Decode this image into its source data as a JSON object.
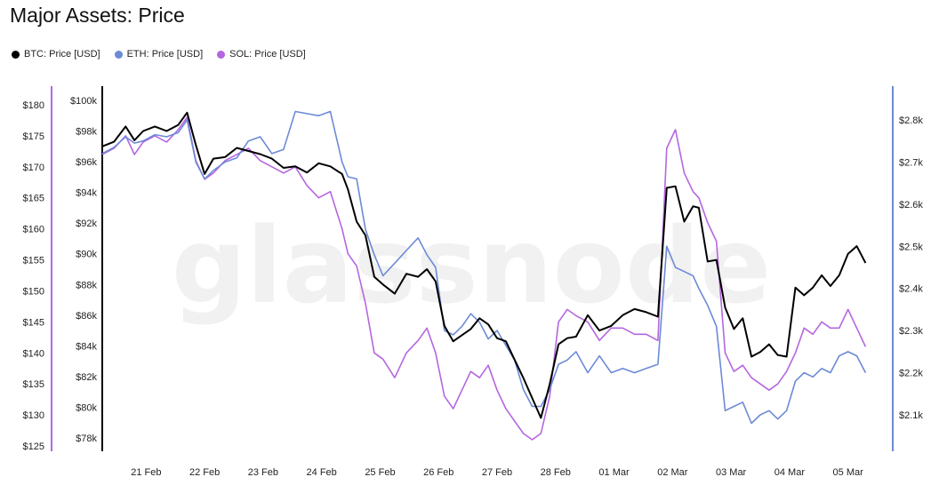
{
  "chart_data": {
    "type": "line",
    "title": "Major Assets: Price",
    "watermark": "glassnode",
    "colors": {
      "btc": "#000000",
      "eth": "#6c8ad6",
      "sol": "#b566e0"
    },
    "legend": [
      {
        "name": "BTC: Price [USD]",
        "color": "#000000"
      },
      {
        "name": "ETH: Price [USD]",
        "color": "#6c8ad6"
      },
      {
        "name": "SOL: Price [USD]",
        "color": "#b566e0"
      }
    ],
    "x_ticks": [
      "21 Feb",
      "22 Feb",
      "23 Feb",
      "24 Feb",
      "25 Feb",
      "26 Feb",
      "27 Feb",
      "28 Feb",
      "01 Mar",
      "02 Mar",
      "03 Mar",
      "04 Mar",
      "05 Mar"
    ],
    "btc_axis": {
      "ticks": [
        "$100k",
        "$98k",
        "$96k",
        "$94k",
        "$92k",
        "$90k",
        "$88k",
        "$86k",
        "$84k",
        "$82k",
        "$80k",
        "$78k"
      ],
      "range": [
        78000,
        100000
      ]
    },
    "sol_axis": {
      "ticks": [
        "$180",
        "$175",
        "$170",
        "$165",
        "$160",
        "$155",
        "$150",
        "$145",
        "$140",
        "$135",
        "$130",
        "$125"
      ],
      "range": [
        125,
        180
      ]
    },
    "eth_axis": {
      "ticks": [
        "$2.8k",
        "$2.7k",
        "$2.6k",
        "$2.5k",
        "$2.4k",
        "$2.3k",
        "$2.2k",
        "$2.1k"
      ],
      "range": [
        2100,
        2800
      ]
    },
    "x_range": [
      0,
      13.5
    ],
    "series": [
      {
        "name": "BTC: Price [USD]",
        "axis": "btc",
        "x": [
          0,
          0.2,
          0.4,
          0.55,
          0.7,
          0.9,
          1.1,
          1.3,
          1.45,
          1.6,
          1.75,
          1.9,
          2.1,
          2.3,
          2.5,
          2.7,
          2.9,
          3.1,
          3.3,
          3.5,
          3.7,
          3.9,
          4.1,
          4.2,
          4.35,
          4.5,
          4.65,
          4.8,
          5,
          5.2,
          5.4,
          5.55,
          5.7,
          5.85,
          6,
          6.15,
          6.3,
          6.45,
          6.6,
          6.75,
          6.9,
          7.05,
          7.2,
          7.35,
          7.5,
          7.65,
          7.8,
          7.95,
          8.1,
          8.3,
          8.5,
          8.7,
          8.9,
          9.1,
          9.3,
          9.5,
          9.65,
          9.8,
          9.95,
          10.1,
          10.2,
          10.35,
          10.5,
          10.65,
          10.8,
          10.95,
          11.1,
          11.25,
          11.4,
          11.55,
          11.7,
          11.85,
          12,
          12.15,
          12.3,
          12.45,
          12.6,
          12.75,
          12.9,
          13.05
        ],
        "y": [
          97000,
          97300,
          98300,
          97400,
          98000,
          98300,
          98000,
          98400,
          99200,
          97100,
          95200,
          96200,
          96300,
          96900,
          96700,
          96500,
          96200,
          95600,
          95700,
          95300,
          95900,
          95700,
          95200,
          94200,
          92100,
          91200,
          88500,
          88000,
          87400,
          88700,
          88500,
          89000,
          88200,
          85300,
          84300,
          84700,
          85100,
          85800,
          85400,
          84500,
          84300,
          83100,
          81900,
          80600,
          79300,
          81500,
          84100,
          84500,
          84600,
          86000,
          85000,
          85300,
          86000,
          86400,
          86200,
          85900,
          94300,
          94400,
          92100,
          93100,
          93000,
          89500,
          89600,
          86500,
          85100,
          85800,
          83300,
          83600,
          84100,
          83400,
          83300,
          87800,
          87300,
          87800,
          88600,
          87900,
          88600,
          90000,
          90500,
          89400
        ]
      },
      {
        "name": "ETH: Price [USD]",
        "axis": "eth",
        "x": [
          0,
          0.2,
          0.4,
          0.55,
          0.7,
          0.9,
          1.1,
          1.3,
          1.45,
          1.6,
          1.75,
          1.9,
          2.1,
          2.3,
          2.5,
          2.7,
          2.9,
          3.1,
          3.3,
          3.5,
          3.7,
          3.9,
          4.1,
          4.2,
          4.35,
          4.5,
          4.65,
          4.8,
          5,
          5.2,
          5.4,
          5.55,
          5.7,
          5.85,
          6,
          6.15,
          6.3,
          6.45,
          6.6,
          6.75,
          6.9,
          7.05,
          7.2,
          7.35,
          7.5,
          7.65,
          7.8,
          7.95,
          8.1,
          8.3,
          8.5,
          8.7,
          8.9,
          9.1,
          9.3,
          9.5,
          9.65,
          9.8,
          9.95,
          10.1,
          10.2,
          10.35,
          10.5,
          10.65,
          10.8,
          10.95,
          11.1,
          11.25,
          11.4,
          11.55,
          11.7,
          11.85,
          12,
          12.15,
          12.3,
          12.45,
          12.6,
          12.75,
          12.9,
          13.05
        ],
        "y": [
          2720,
          2735,
          2760,
          2745,
          2750,
          2765,
          2760,
          2770,
          2800,
          2700,
          2660,
          2680,
          2700,
          2710,
          2750,
          2760,
          2720,
          2730,
          2820,
          2815,
          2810,
          2820,
          2700,
          2665,
          2660,
          2540,
          2480,
          2430,
          2460,
          2490,
          2520,
          2480,
          2450,
          2300,
          2290,
          2310,
          2340,
          2320,
          2280,
          2300,
          2265,
          2230,
          2160,
          2120,
          2120,
          2160,
          2220,
          2230,
          2250,
          2200,
          2240,
          2200,
          2210,
          2200,
          2210,
          2220,
          2500,
          2450,
          2440,
          2430,
          2400,
          2360,
          2310,
          2110,
          2120,
          2130,
          2080,
          2100,
          2110,
          2090,
          2110,
          2180,
          2200,
          2190,
          2210,
          2200,
          2240,
          2250,
          2240,
          2200
        ]
      },
      {
        "name": "SOL: Price [USD]",
        "axis": "sol",
        "x": [
          0,
          0.2,
          0.4,
          0.55,
          0.7,
          0.9,
          1.1,
          1.3,
          1.45,
          1.6,
          1.75,
          1.9,
          2.1,
          2.3,
          2.5,
          2.7,
          2.9,
          3.1,
          3.3,
          3.5,
          3.7,
          3.9,
          4.1,
          4.2,
          4.35,
          4.5,
          4.65,
          4.8,
          5,
          5.2,
          5.4,
          5.55,
          5.7,
          5.85,
          6,
          6.15,
          6.3,
          6.45,
          6.6,
          6.75,
          6.9,
          7.05,
          7.2,
          7.35,
          7.5,
          7.65,
          7.8,
          7.95,
          8.1,
          8.3,
          8.5,
          8.7,
          8.9,
          9.1,
          9.3,
          9.5,
          9.65,
          9.8,
          9.95,
          10.1,
          10.2,
          10.35,
          10.5,
          10.65,
          10.8,
          10.95,
          11.1,
          11.25,
          11.4,
          11.55,
          11.7,
          11.85,
          12,
          12.15,
          12.3,
          12.45,
          12.6,
          12.75,
          12.9,
          13.05
        ],
        "y": [
          172,
          173,
          175,
          172,
          174,
          175,
          174,
          176,
          178,
          171,
          168,
          169,
          171,
          172,
          173,
          171,
          170,
          169,
          170,
          167,
          165,
          166,
          160,
          156,
          154,
          148,
          140,
          139,
          136,
          140,
          142,
          144,
          140,
          133,
          131,
          134,
          137,
          136,
          138,
          134,
          131,
          129,
          127,
          126,
          127,
          133,
          145,
          147,
          146,
          145,
          142,
          144,
          144,
          143,
          143,
          142,
          173,
          176,
          169,
          166,
          165,
          161,
          158,
          140,
          137,
          138,
          136,
          135,
          134,
          135,
          137,
          140,
          144,
          143,
          145,
          144,
          144,
          147,
          144,
          141
        ]
      }
    ]
  }
}
